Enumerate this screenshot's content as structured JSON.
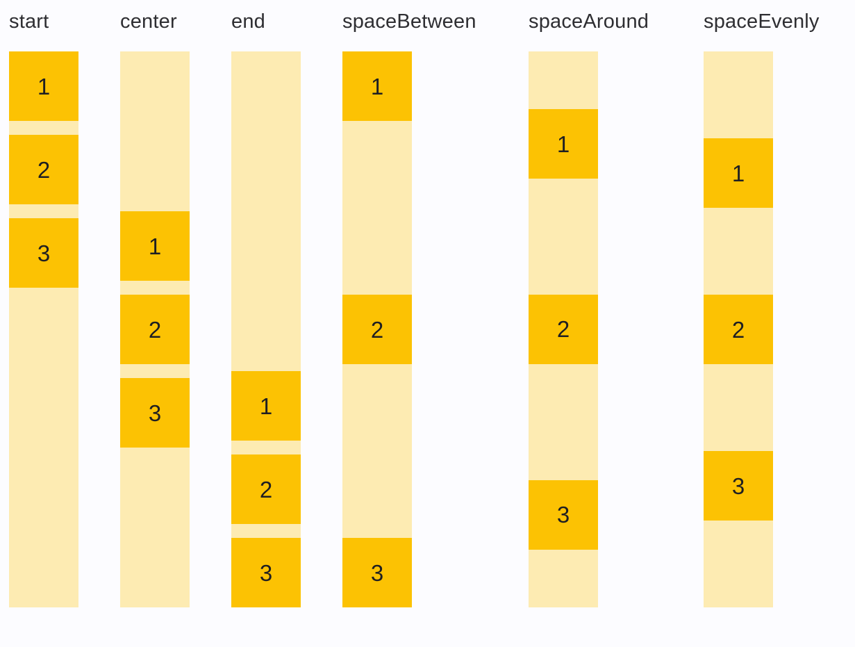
{
  "page": {
    "background": "#FCFCFF",
    "colors": {
      "box": "#FCC203",
      "track": "#FDEBB2",
      "label_text": "#2E2E32",
      "number_text": "#1F1F22"
    }
  },
  "diagram": {
    "columns": [
      {
        "label": "start",
        "alignment": "start",
        "item_gap": 20,
        "items": [
          "1",
          "2",
          "3"
        ]
      },
      {
        "label": "center",
        "alignment": "center",
        "item_gap": 20,
        "items": [
          "1",
          "2",
          "3"
        ]
      },
      {
        "label": "end",
        "alignment": "end",
        "item_gap": 20,
        "items": [
          "1",
          "2",
          "3"
        ]
      },
      {
        "label": "spaceBetween",
        "alignment": "spaceBetween",
        "item_gap": 0,
        "items": [
          "1",
          "2",
          "3"
        ]
      },
      {
        "label": "spaceAround",
        "alignment": "spaceAround",
        "item_gap": 0,
        "items": [
          "1",
          "2",
          "3"
        ]
      },
      {
        "label": "spaceEvenly",
        "alignment": "spaceEvenly",
        "item_gap": 0,
        "items": [
          "1",
          "2",
          "3"
        ]
      }
    ]
  }
}
